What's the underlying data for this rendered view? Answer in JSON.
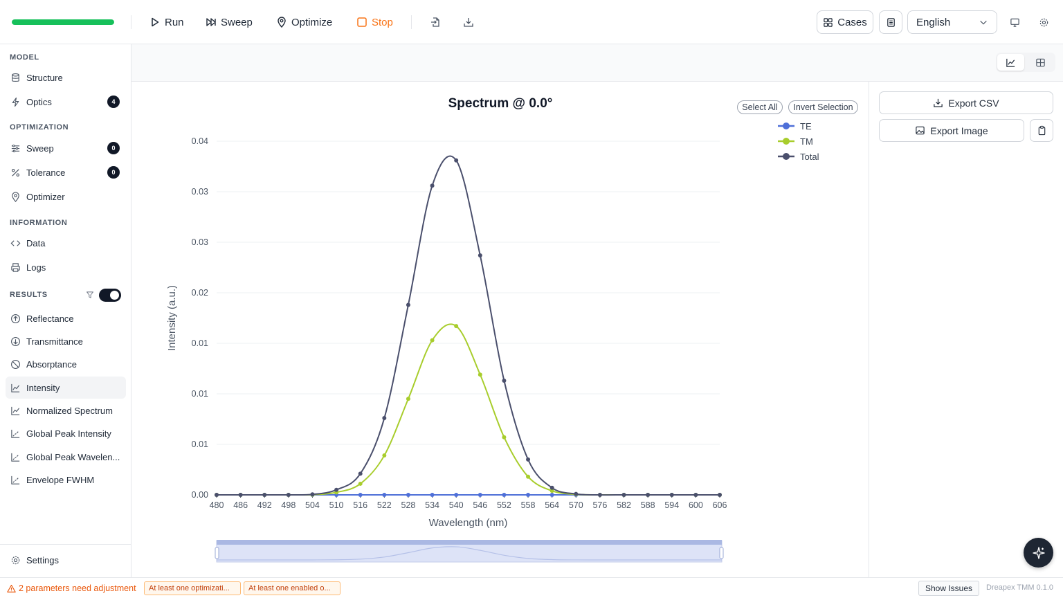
{
  "toolbar": {
    "progress_fraction": 1.0,
    "run_label": "Run",
    "sweep_label": "Sweep",
    "optimize_label": "Optimize",
    "stop_label": "Stop",
    "cases_label": "Cases",
    "language_selected": "English"
  },
  "sidebar": {
    "model_title": "MODEL",
    "structure_label": "Structure",
    "optics_label": "Optics",
    "optics_badge": "4",
    "optimization_title": "OPTIMIZATION",
    "sweep_label": "Sweep",
    "sweep_badge": "0",
    "tolerance_label": "Tolerance",
    "tolerance_badge": "0",
    "optimizer_label": "Optimizer",
    "information_title": "INFORMATION",
    "data_label": "Data",
    "logs_label": "Logs",
    "results_title": "RESULTS",
    "results": [
      "Reflectance",
      "Transmittance",
      "Absorptance",
      "Intensity",
      "Normalized Spectrum",
      "Global Peak Intensity",
      "Global Peak Wavelen...",
      "Envelope FWHM"
    ],
    "active_result": "Intensity",
    "settings_label": "Settings"
  },
  "right_panel": {
    "export_csv_label": "Export CSV",
    "export_image_label": "Export Image"
  },
  "chart_controls": {
    "select_all_label": "Select All",
    "invert_selection_label": "Invert Selection"
  },
  "colors": {
    "te": "#4e6fd8",
    "tm": "#a8cd2c",
    "total": "#4a4f6c",
    "progress": "#16c05a",
    "stop": "#f97316"
  },
  "chart_data": {
    "type": "line",
    "title": "Spectrum @ 0.0°",
    "xlabel": "Wavelength (nm)",
    "ylabel": "Intensity (a.u.)",
    "x": [
      480,
      486,
      492,
      498,
      504,
      510,
      516,
      522,
      528,
      534,
      540,
      546,
      552,
      558,
      564,
      570,
      576,
      582,
      588,
      594,
      600,
      606
    ],
    "x_ticks": [
      "480",
      "486",
      "492",
      "498",
      "504",
      "510",
      "516",
      "522",
      "528",
      "534",
      "540",
      "546",
      "552",
      "558",
      "564",
      "570",
      "576",
      "582",
      "588",
      "594",
      "600",
      "606"
    ],
    "y_tick_labels": [
      "0.00",
      "0.01",
      "0.01",
      "0.01",
      "0.02",
      "0.03",
      "0.03",
      "0.04"
    ],
    "ylim": [
      0,
      0.035
    ],
    "legend_placement": "top-right",
    "grid": true,
    "series": [
      {
        "name": "TE",
        "values": [
          0,
          0,
          0,
          0,
          0,
          0,
          0,
          0,
          0,
          0,
          0,
          0,
          0,
          0,
          0,
          0,
          0,
          0,
          0,
          0,
          0,
          0
        ]
      },
      {
        "name": "TM",
        "values": [
          0,
          0,
          0,
          0,
          2e-05,
          0.00025,
          0.0011,
          0.0039,
          0.0095,
          0.0153,
          0.0167,
          0.0119,
          0.0057,
          0.0018,
          0.0004,
          5e-05,
          0,
          0,
          0,
          0,
          0,
          0
        ]
      },
      {
        "name": "Total",
        "values": [
          0,
          0,
          0,
          0,
          5e-05,
          0.0005,
          0.0021,
          0.0076,
          0.0188,
          0.0306,
          0.0331,
          0.0237,
          0.0113,
          0.0035,
          0.0007,
          9e-05,
          0,
          0,
          0,
          0,
          0,
          0
        ]
      }
    ]
  },
  "status": {
    "warning_text": "2 parameters need adjustment",
    "chip1": "At least one optimizati...",
    "chip2": "At least one enabled o...",
    "show_issues_label": "Show Issues",
    "version": "Dreapex TMM 0.1.0"
  }
}
